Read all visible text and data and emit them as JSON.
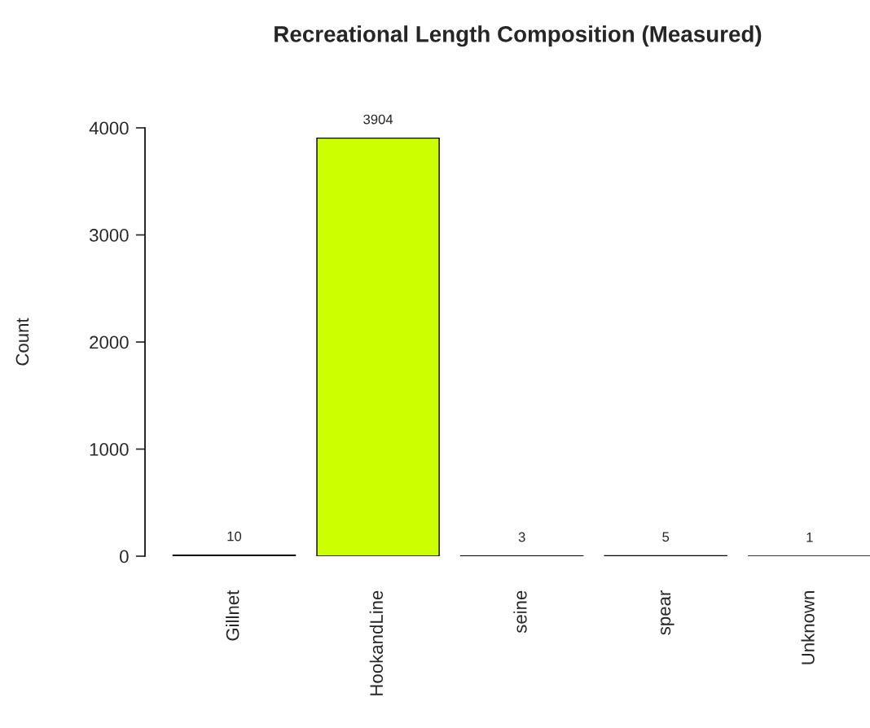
{
  "chart_data": {
    "type": "bar",
    "title": "Recreational Length Composition (Measured)",
    "ylabel": "Count",
    "categories": [
      "Gillnet",
      "HookandLine",
      "seine",
      "spear",
      "Unknown"
    ],
    "values": [
      10,
      3904,
      3,
      5,
      1
    ],
    "colors": [
      "#ff0000",
      "#ccff00",
      "#00ff66",
      "#0066ff",
      "#cc00ff"
    ],
    "ylim": [
      0,
      4000
    ],
    "yticks": [
      0,
      1000,
      2000,
      3000,
      4000
    ],
    "data_labels": true,
    "grid": false
  }
}
